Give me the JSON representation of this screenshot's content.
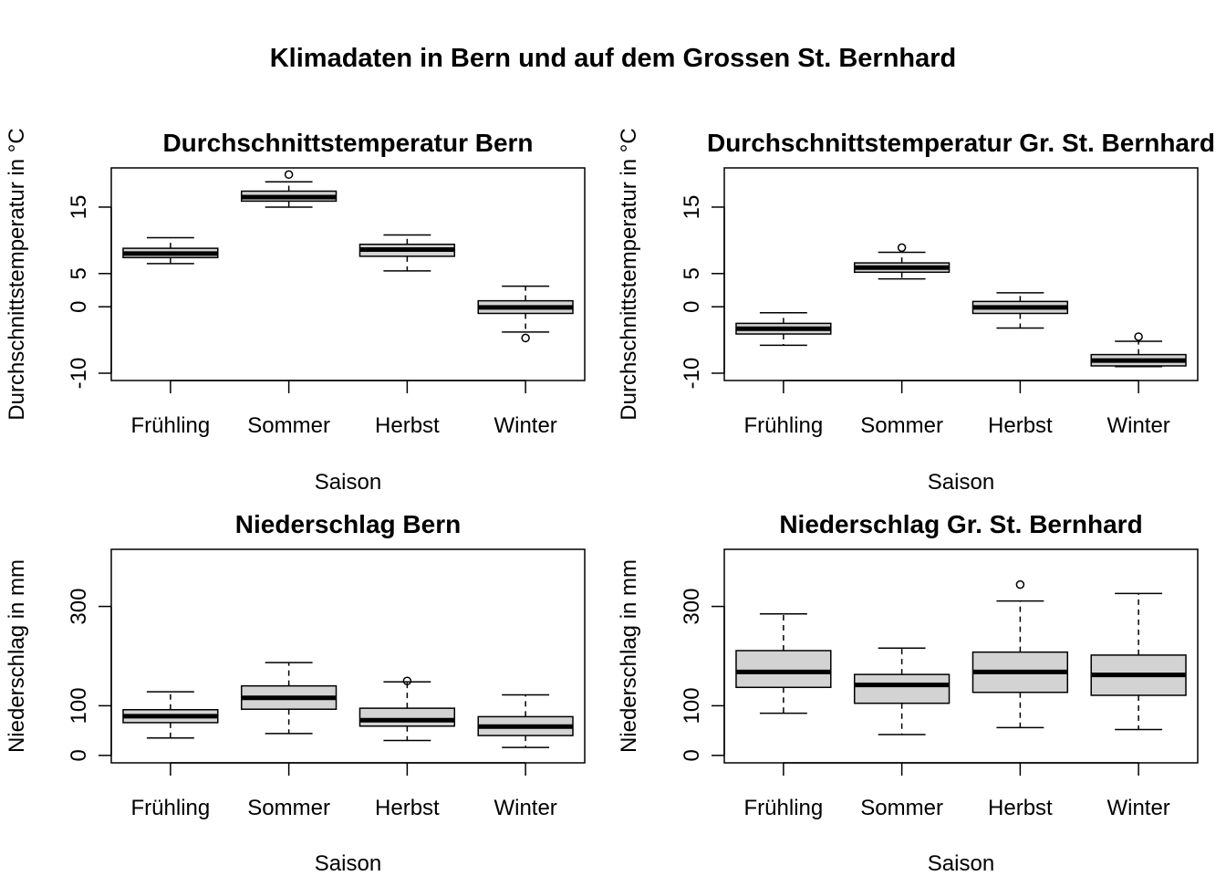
{
  "figure_title": "Klimadaten in Bern und auf dem Grossen St. Bernhard",
  "colors": {
    "box_fill": "#d3d3d3",
    "stroke": "#000000",
    "background": "#ffffff"
  },
  "chart_data": [
    {
      "type": "boxplot",
      "title": "Durchschnittstemperatur Bern",
      "xlabel": "Saison",
      "ylabel": "Durchschnittstemperatur in °C",
      "categories": [
        "Frühling",
        "Sommer",
        "Herbst",
        "Winter"
      ],
      "yticks": [
        -10,
        0,
        5,
        15
      ],
      "ytick_labels": [
        "-10",
        "0",
        "5",
        "15"
      ],
      "ylim": [
        -11.1,
        20.9
      ],
      "grid": false,
      "boxes": [
        {
          "low": 6.5,
          "q1": 7.4,
          "median": 8.0,
          "q3": 8.8,
          "high": 10.4,
          "outliers": []
        },
        {
          "low": 15.0,
          "q1": 15.9,
          "median": 16.5,
          "q3": 17.4,
          "high": 18.8,
          "outliers": [
            19.9
          ]
        },
        {
          "low": 5.4,
          "q1": 7.6,
          "median": 8.6,
          "q3": 9.4,
          "high": 10.8,
          "outliers": []
        },
        {
          "low": -3.8,
          "q1": -1.0,
          "median": -0.1,
          "q3": 0.9,
          "high": 3.1,
          "outliers": [
            -4.7
          ]
        }
      ]
    },
    {
      "type": "boxplot",
      "title": "Durchschnittstemperatur Gr. St. Bernhard",
      "xlabel": "Saison",
      "ylabel": "Durchschnittstemperatur in °C",
      "categories": [
        "Frühling",
        "Sommer",
        "Herbst",
        "Winter"
      ],
      "yticks": [
        -10,
        0,
        5,
        15
      ],
      "ytick_labels": [
        "-10",
        "0",
        "5",
        "15"
      ],
      "ylim": [
        -11.1,
        20.9
      ],
      "grid": false,
      "boxes": [
        {
          "low": -5.8,
          "q1": -4.1,
          "median": -3.3,
          "q3": -2.5,
          "high": -0.9,
          "outliers": []
        },
        {
          "low": 4.2,
          "q1": 5.2,
          "median": 5.9,
          "q3": 6.6,
          "high": 8.2,
          "outliers": [
            8.9
          ]
        },
        {
          "low": -3.2,
          "q1": -1.0,
          "median": -0.1,
          "q3": 0.8,
          "high": 2.1,
          "outliers": []
        },
        {
          "low": -9.0,
          "q1": -8.9,
          "median": -8.1,
          "q3": -7.2,
          "high": -5.2,
          "outliers": [
            -4.5
          ]
        }
      ]
    },
    {
      "type": "boxplot",
      "title": "Niederschlag Bern",
      "xlabel": "Saison",
      "ylabel": "Niederschlag in mm",
      "categories": [
        "Frühling",
        "Sommer",
        "Herbst",
        "Winter"
      ],
      "yticks": [
        0,
        100,
        300
      ],
      "ytick_labels": [
        "0",
        "100",
        "300"
      ],
      "ylim": [
        -15,
        415
      ],
      "grid": false,
      "boxes": [
        {
          "low": 35,
          "q1": 66,
          "median": 79,
          "q3": 92,
          "high": 128,
          "outliers": []
        },
        {
          "low": 44,
          "q1": 93,
          "median": 116,
          "q3": 140,
          "high": 187,
          "outliers": []
        },
        {
          "low": 30,
          "q1": 59,
          "median": 71,
          "q3": 95,
          "high": 148,
          "outliers": [
            150
          ]
        },
        {
          "low": 16,
          "q1": 40,
          "median": 58,
          "q3": 78,
          "high": 122,
          "outliers": []
        }
      ]
    },
    {
      "type": "boxplot",
      "title": "Niederschlag Gr. St. Bernhard",
      "xlabel": "Saison",
      "ylabel": "Niederschlag in mm",
      "categories": [
        "Frühling",
        "Sommer",
        "Herbst",
        "Winter"
      ],
      "yticks": [
        0,
        100,
        300
      ],
      "ytick_labels": [
        "0",
        "100",
        "300"
      ],
      "ylim": [
        -15,
        415
      ],
      "grid": false,
      "boxes": [
        {
          "low": 85,
          "q1": 137,
          "median": 168,
          "q3": 211,
          "high": 285,
          "outliers": []
        },
        {
          "low": 42,
          "q1": 105,
          "median": 142,
          "q3": 163,
          "high": 216,
          "outliers": []
        },
        {
          "low": 56,
          "q1": 127,
          "median": 168,
          "q3": 208,
          "high": 311,
          "outliers": [
            344
          ]
        },
        {
          "low": 52,
          "q1": 121,
          "median": 162,
          "q3": 202,
          "high": 326,
          "outliers": []
        }
      ]
    }
  ]
}
